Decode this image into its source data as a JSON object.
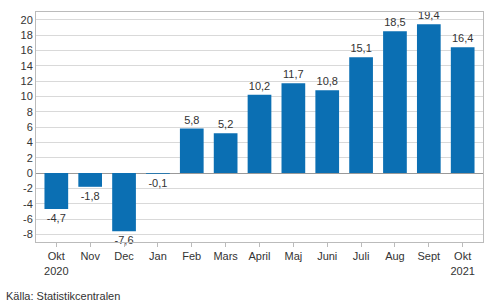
{
  "chart_data": {
    "type": "bar",
    "categories": [
      "Okt\n2020",
      "Nov",
      "Dec",
      "Jan",
      "Feb",
      "Mars",
      "April",
      "Maj",
      "Juni",
      "Juli",
      "Aug",
      "Sept",
      "Okt\n2021"
    ],
    "values": [
      -4.7,
      -1.8,
      -7.6,
      -0.1,
      5.8,
      5.2,
      10.2,
      11.7,
      10.8,
      15.1,
      18.5,
      19.4,
      16.4
    ],
    "value_labels": [
      "-4,7",
      "-1,8",
      "-7,6",
      "-0,1",
      "5,8",
      "5,2",
      "10,2",
      "11,7",
      "10,8",
      "15,1",
      "18,5",
      "19,4",
      "16,4"
    ],
    "data_labels": true,
    "color": "#0b6fb3",
    "ylim": [
      -9,
      21
    ],
    "yticks": [
      -8,
      -6,
      -4,
      -2,
      0,
      2,
      4,
      6,
      8,
      10,
      12,
      14,
      16,
      18,
      20
    ],
    "grid": true,
    "annotations": [
      "Källa: Statistikcentralen"
    ]
  }
}
